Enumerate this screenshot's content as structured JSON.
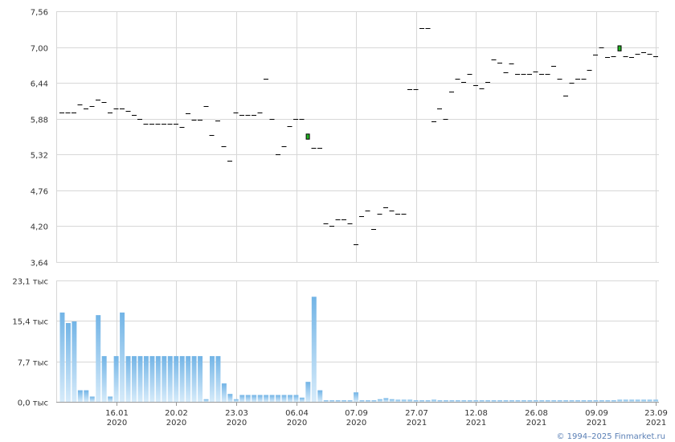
{
  "copyright": "© 1994–2025 Finmarket.ru",
  "chart_data": [
    {
      "type": "candlestick",
      "ylim": [
        3.64,
        7.56
      ],
      "yticks": [
        "3,64",
        "4,20",
        "4,76",
        "5,32",
        "5,88",
        "6,44",
        "7,00",
        "7,56"
      ],
      "ytick_values": [
        3.64,
        4.2,
        4.76,
        5.32,
        5.88,
        6.44,
        7.0,
        7.56
      ],
      "bar_count": 100,
      "values": [
        {
          "i": 0,
          "o": 5.98,
          "c": 5.98
        },
        {
          "i": 1,
          "o": 5.98,
          "c": 5.98
        },
        {
          "i": 2,
          "o": 5.98,
          "c": 5.98
        },
        {
          "i": 3,
          "o": 6.1,
          "c": 6.1
        },
        {
          "i": 4,
          "o": 6.04,
          "c": 6.04
        },
        {
          "i": 5,
          "o": 6.08,
          "c": 6.08
        },
        {
          "i": 6,
          "o": 6.18,
          "c": 6.18
        },
        {
          "i": 7,
          "o": 6.14,
          "c": 6.14
        },
        {
          "i": 8,
          "o": 5.98,
          "c": 5.98
        },
        {
          "i": 9,
          "o": 6.04,
          "c": 6.04
        },
        {
          "i": 10,
          "o": 6.04,
          "c": 6.04
        },
        {
          "i": 11,
          "o": 6.0,
          "c": 6.0
        },
        {
          "i": 12,
          "o": 5.94,
          "c": 5.94
        },
        {
          "i": 13,
          "o": 5.88,
          "c": 5.88
        },
        {
          "i": 14,
          "o": 5.8,
          "c": 5.8
        },
        {
          "i": 15,
          "o": 5.8,
          "c": 5.8
        },
        {
          "i": 16,
          "o": 5.8,
          "c": 5.8
        },
        {
          "i": 17,
          "o": 5.8,
          "c": 5.8
        },
        {
          "i": 18,
          "o": 5.8,
          "c": 5.8
        },
        {
          "i": 19,
          "o": 5.8,
          "c": 5.8
        },
        {
          "i": 20,
          "o": 5.75,
          "c": 5.75
        },
        {
          "i": 21,
          "o": 5.96,
          "c": 5.96
        },
        {
          "i": 22,
          "o": 5.86,
          "c": 5.86
        },
        {
          "i": 23,
          "o": 5.86,
          "c": 5.86
        },
        {
          "i": 24,
          "o": 6.08,
          "c": 6.08
        },
        {
          "i": 25,
          "o": 5.62,
          "c": 5.62
        },
        {
          "i": 26,
          "o": 5.85,
          "c": 5.85
        },
        {
          "i": 27,
          "o": 5.45,
          "c": 5.45
        },
        {
          "i": 28,
          "o": 5.22,
          "c": 5.22
        },
        {
          "i": 29,
          "o": 5.98,
          "c": 5.98
        },
        {
          "i": 30,
          "o": 5.94,
          "c": 5.94
        },
        {
          "i": 31,
          "o": 5.94,
          "c": 5.94
        },
        {
          "i": 32,
          "o": 5.94,
          "c": 5.94
        },
        {
          "i": 33,
          "o": 5.98,
          "c": 5.98
        },
        {
          "i": 34,
          "o": 6.5,
          "c": 6.5
        },
        {
          "i": 35,
          "o": 5.88,
          "c": 5.88
        },
        {
          "i": 36,
          "o": 5.32,
          "c": 5.32
        },
        {
          "i": 37,
          "o": 5.45,
          "c": 5.45
        },
        {
          "i": 38,
          "o": 5.76,
          "c": 5.76
        },
        {
          "i": 39,
          "o": 5.88,
          "c": 5.88
        },
        {
          "i": 40,
          "o": 5.88,
          "c": 5.88
        },
        {
          "i": 41,
          "o": 5.56,
          "c": 5.64
        },
        {
          "i": 42,
          "o": 5.42,
          "c": 5.42
        },
        {
          "i": 43,
          "o": 5.42,
          "c": 5.42
        },
        {
          "i": 44,
          "o": 4.24,
          "c": 4.24
        },
        {
          "i": 45,
          "o": 4.2,
          "c": 4.2
        },
        {
          "i": 46,
          "o": 4.3,
          "c": 4.3
        },
        {
          "i": 47,
          "o": 4.3,
          "c": 4.3
        },
        {
          "i": 48,
          "o": 4.24,
          "c": 4.24
        },
        {
          "i": 49,
          "o": 3.92,
          "c": 3.92
        },
        {
          "i": 50,
          "o": 4.36,
          "c": 4.36
        },
        {
          "i": 51,
          "o": 4.44,
          "c": 4.44
        },
        {
          "i": 52,
          "o": 4.16,
          "c": 4.16
        },
        {
          "i": 53,
          "o": 4.4,
          "c": 4.4
        },
        {
          "i": 54,
          "o": 4.5,
          "c": 4.5
        },
        {
          "i": 55,
          "o": 4.44,
          "c": 4.44
        },
        {
          "i": 56,
          "o": 4.4,
          "c": 4.4
        },
        {
          "i": 57,
          "o": 4.4,
          "c": 4.4
        },
        {
          "i": 58,
          "o": 6.34,
          "c": 6.34
        },
        {
          "i": 59,
          "o": 6.34,
          "c": 6.34
        },
        {
          "i": 60,
          "o": 7.3,
          "c": 7.3
        },
        {
          "i": 61,
          "o": 7.3,
          "c": 7.3
        },
        {
          "i": 62,
          "o": 5.84,
          "c": 5.84
        },
        {
          "i": 63,
          "o": 6.04,
          "c": 6.04
        },
        {
          "i": 64,
          "o": 5.88,
          "c": 5.88
        },
        {
          "i": 65,
          "o": 6.3,
          "c": 6.3
        },
        {
          "i": 66,
          "o": 6.5,
          "c": 6.5
        },
        {
          "i": 67,
          "o": 6.46,
          "c": 6.46
        },
        {
          "i": 68,
          "o": 6.58,
          "c": 6.58
        },
        {
          "i": 69,
          "o": 6.4,
          "c": 6.4
        },
        {
          "i": 70,
          "o": 6.36,
          "c": 6.36
        },
        {
          "i": 71,
          "o": 6.46,
          "c": 6.46
        },
        {
          "i": 72,
          "o": 6.8,
          "c": 6.8
        },
        {
          "i": 73,
          "o": 6.76,
          "c": 6.76
        },
        {
          "i": 74,
          "o": 6.6,
          "c": 6.6
        },
        {
          "i": 75,
          "o": 6.74,
          "c": 6.74
        },
        {
          "i": 76,
          "o": 6.58,
          "c": 6.58
        },
        {
          "i": 77,
          "o": 6.58,
          "c": 6.58
        },
        {
          "i": 78,
          "o": 6.58,
          "c": 6.58
        },
        {
          "i": 79,
          "o": 6.62,
          "c": 6.62
        },
        {
          "i": 80,
          "o": 6.58,
          "c": 6.58
        },
        {
          "i": 81,
          "o": 6.58,
          "c": 6.58
        },
        {
          "i": 82,
          "o": 6.7,
          "c": 6.7
        },
        {
          "i": 83,
          "o": 6.5,
          "c": 6.5
        },
        {
          "i": 84,
          "o": 6.24,
          "c": 6.24
        },
        {
          "i": 85,
          "o": 6.44,
          "c": 6.44
        },
        {
          "i": 86,
          "o": 6.5,
          "c": 6.5
        },
        {
          "i": 87,
          "o": 6.5,
          "c": 6.5
        },
        {
          "i": 88,
          "o": 6.64,
          "c": 6.64
        },
        {
          "i": 89,
          "o": 6.88,
          "c": 6.88
        },
        {
          "i": 90,
          "o": 7.0,
          "c": 7.0
        },
        {
          "i": 91,
          "o": 6.84,
          "c": 6.84
        },
        {
          "i": 92,
          "o": 6.86,
          "c": 6.86
        },
        {
          "i": 93,
          "o": 6.94,
          "c": 7.02
        },
        {
          "i": 94,
          "o": 6.86,
          "c": 6.86
        },
        {
          "i": 95,
          "o": 6.84,
          "c": 6.84
        },
        {
          "i": 96,
          "o": 6.9,
          "c": 6.9
        },
        {
          "i": 97,
          "o": 6.92,
          "c": 6.92
        },
        {
          "i": 98,
          "o": 6.9,
          "c": 6.9
        },
        {
          "i": 99,
          "o": 6.86,
          "c": 6.86
        }
      ]
    },
    {
      "type": "bar",
      "ylim": [
        0,
        23.1
      ],
      "yticks": [
        "0,0 тыс",
        "7,7 тыс",
        "15,4 тыс",
        "23,1 тыс"
      ],
      "ytick_values": [
        0,
        7.7,
        15.4,
        23.1
      ],
      "bar_color": "#72b4e6",
      "values": [
        17.0,
        15.0,
        15.3,
        2.2,
        2.2,
        1.0,
        16.5,
        8.7,
        1.0,
        8.7,
        17.0,
        8.7,
        8.7,
        8.7,
        8.7,
        8.7,
        8.7,
        8.7,
        8.7,
        8.7,
        8.7,
        8.7,
        8.7,
        8.7,
        0.5,
        8.7,
        8.7,
        3.5,
        1.5,
        0.5,
        1.3,
        1.3,
        1.3,
        1.3,
        1.3,
        1.3,
        1.3,
        1.3,
        1.3,
        1.3,
        0.8,
        3.8,
        20.0,
        2.2,
        0.3,
        0.3,
        0.3,
        0.3,
        0.3,
        1.8,
        0.3,
        0.3,
        0.3,
        0.5,
        0.7,
        0.5,
        0.4,
        0.4,
        0.4,
        0.3,
        0.3,
        0.3,
        0.4,
        0.3,
        0.3,
        0.3,
        0.3,
        0.3,
        0.3,
        0.3,
        0.3,
        0.3,
        0.3,
        0.3,
        0.3,
        0.3,
        0.3,
        0.3,
        0.3,
        0.3,
        0.3,
        0.3,
        0.3,
        0.3,
        0.3,
        0.3,
        0.3,
        0.3,
        0.3,
        0.3,
        0.3,
        0.3,
        0.3,
        0.4,
        0.4,
        0.4,
        0.4,
        0.4,
        0.4,
        0.4
      ]
    }
  ],
  "xticks": [
    {
      "i": 10,
      "day": "16.01",
      "year": "2020"
    },
    {
      "i": 20,
      "day": "20.02",
      "year": "2020"
    },
    {
      "i": 30,
      "day": "23.03",
      "year": "2020"
    },
    {
      "i": 40,
      "day": "06.04",
      "year": "2020"
    },
    {
      "i": 50,
      "day": "07.09",
      "year": "2020"
    },
    {
      "i": 60,
      "day": "27.07",
      "year": "2021"
    },
    {
      "i": 70,
      "day": "12.08",
      "year": "2021"
    },
    {
      "i": 80,
      "day": "26.08",
      "year": "2021"
    },
    {
      "i": 90,
      "day": "09.09",
      "year": "2021"
    },
    {
      "i": 100,
      "day": "23.09",
      "year": "2021"
    }
  ],
  "colors": {
    "up": "#21b521",
    "up_border": "#000000",
    "flat": "#000000",
    "grid": "#d7d7d7"
  }
}
